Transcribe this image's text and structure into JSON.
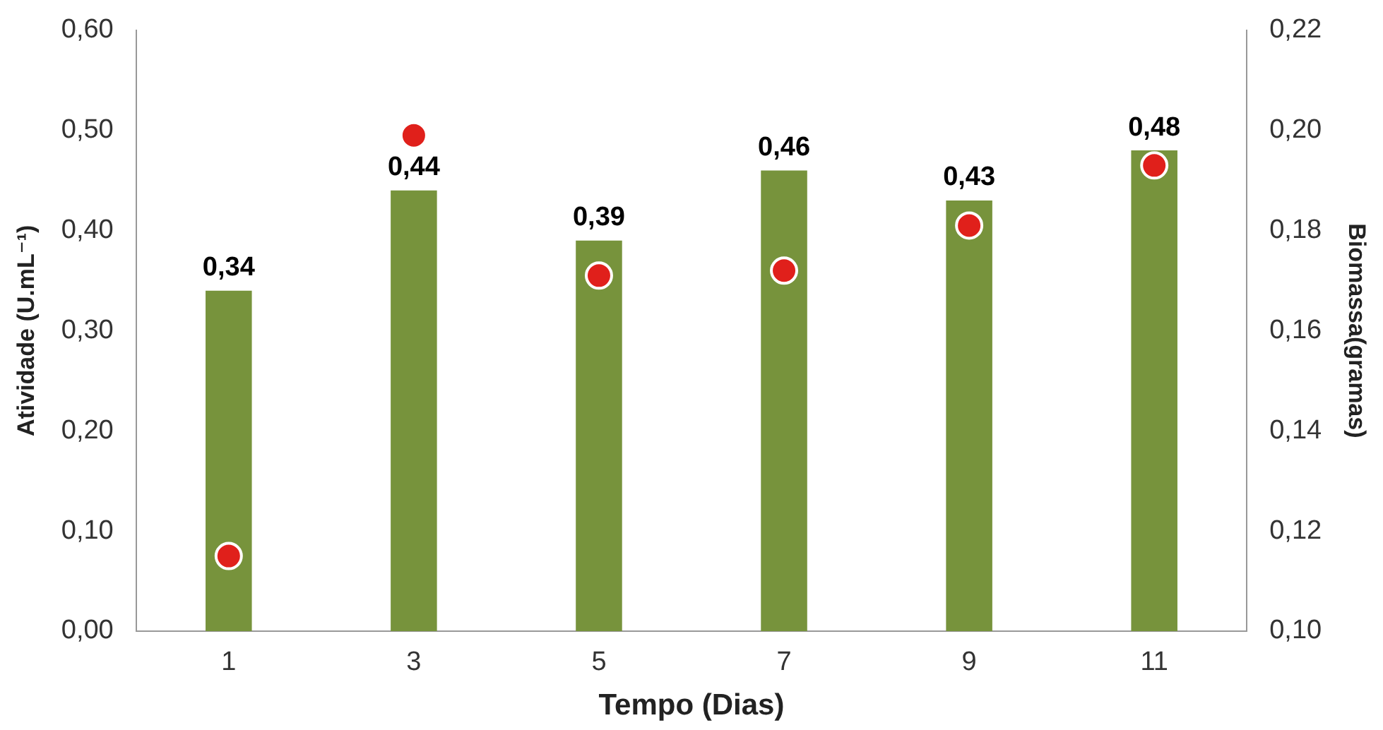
{
  "chart_data": {
    "type": "bar",
    "xlabel": "Tempo (Dias)",
    "ylabel": "Atividade (U.mL⁻¹)",
    "y2label": "Biomassa(gramas)",
    "categories": [
      "1",
      "3",
      "5",
      "7",
      "9",
      "11"
    ],
    "series": [
      {
        "color": "#77933c",
        "values": [
          0.34,
          0.44,
          0.39,
          0.46,
          0.43,
          0.48
        ]
      },
      {
        "type": "scatter",
        "axis": "y2",
        "color": "#e0201b",
        "values": [
          0.115,
          0.199,
          0.171,
          0.172,
          0.181,
          0.193
        ]
      }
    ],
    "ylim": [
      0,
      0.6
    ],
    "yticks": [
      {
        "value": 0,
        "label": "0,00"
      },
      {
        "value": 0.1,
        "label": "0,10"
      },
      {
        "value": 0.2,
        "label": "0,20"
      },
      {
        "value": 0.3,
        "label": "0,30"
      },
      {
        "value": 0.4,
        "label": "0,40"
      },
      {
        "value": 0.5,
        "label": "0,50"
      },
      {
        "value": 0.6,
        "label": "0,60"
      }
    ],
    "y2lim": [
      0.1,
      0.22
    ],
    "y2ticks": [
      {
        "value": 0.1,
        "label": "0,10"
      },
      {
        "value": 0.12,
        "label": "0,12"
      },
      {
        "value": 0.14,
        "label": "0,14"
      },
      {
        "value": 0.16,
        "label": "0,16"
      },
      {
        "value": 0.18,
        "label": "0,18"
      },
      {
        "value": 0.2,
        "label": "0,20"
      },
      {
        "value": 0.22,
        "label": "0,22"
      }
    ],
    "value_labels": [
      "0,34",
      "0,44",
      "0,39",
      "0,46",
      "0,43",
      "0,48"
    ],
    "marker": "circle",
    "grid": false,
    "legend": false
  }
}
